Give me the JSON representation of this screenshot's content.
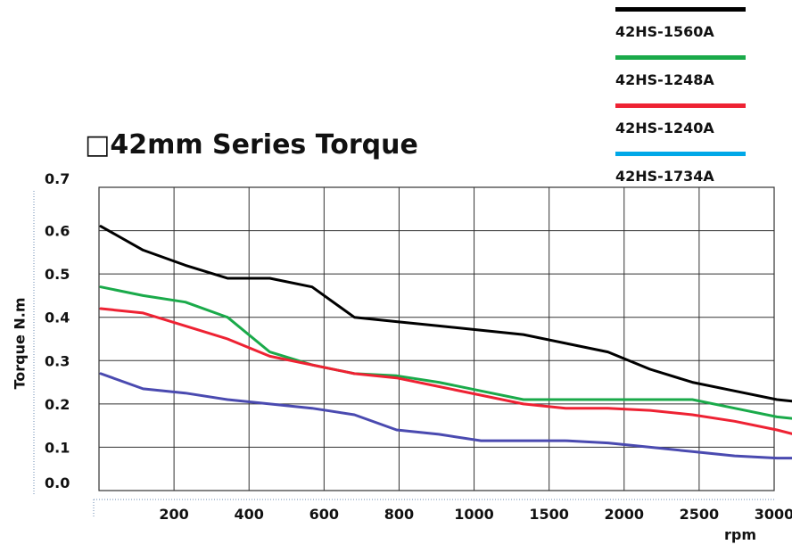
{
  "chart_data": {
    "type": "line",
    "title": "□42mm Series Torque",
    "ylabel": "Torque N.m",
    "xlabel": "rpm",
    "categories": [
      "200",
      "400",
      "600",
      "800",
      "1000",
      "1500",
      "2000",
      "2500",
      "3000"
    ],
    "y_ticks": [
      "0.0",
      "0.1",
      "0.2",
      "0.3",
      "0.4",
      "0.5",
      "0.6",
      "0.7"
    ],
    "ylim": [
      0,
      0.7
    ],
    "grid": true,
    "legend_position": "top-right",
    "series": [
      {
        "name": "42HS-1560A",
        "color": "#000000",
        "x": [
          "",
          "200",
          "",
          "400",
          "",
          "600",
          "",
          "800",
          "",
          "1000",
          "",
          "1500",
          "",
          "2000",
          "",
          "2500",
          "",
          "3000"
        ],
        "values": [
          0.61,
          0.555,
          0.52,
          0.49,
          0.49,
          0.47,
          0.4,
          0.39,
          0.38,
          0.37,
          0.36,
          0.34,
          0.32,
          0.28,
          0.25,
          0.23,
          0.21,
          0.2
        ]
      },
      {
        "name": "42HS-1248A",
        "color": "#1aaa4a",
        "x": [
          "",
          "200",
          "",
          "400",
          "",
          "600",
          "",
          "800",
          "",
          "1000",
          "",
          "1500",
          "",
          "2000",
          "",
          "2500",
          "",
          "3000"
        ],
        "values": [
          0.47,
          0.45,
          0.435,
          0.4,
          0.32,
          0.29,
          0.27,
          0.265,
          0.25,
          0.23,
          0.21,
          0.21,
          0.21,
          0.21,
          0.21,
          0.19,
          0.17,
          0.16
        ]
      },
      {
        "name": "42HS-1240A",
        "color": "#ee2233",
        "x": [
          "",
          "200",
          "",
          "400",
          "",
          "600",
          "",
          "800",
          "",
          "1000",
          "",
          "1500",
          "",
          "2000",
          "",
          "2500",
          "",
          "3000"
        ],
        "values": [
          0.42,
          0.41,
          0.38,
          0.35,
          0.31,
          0.29,
          0.27,
          0.26,
          0.24,
          0.22,
          0.2,
          0.19,
          0.19,
          0.185,
          0.175,
          0.16,
          0.14,
          0.115
        ]
      },
      {
        "name": "42HS-1734A",
        "color": "#00a8e8",
        "line_color": "#4a4ab0",
        "x": [
          "",
          "200",
          "",
          "400",
          "",
          "600",
          "",
          "800",
          "",
          "1000",
          "",
          "1500",
          "",
          "2000",
          "",
          "2500",
          "",
          "3000"
        ],
        "values": [
          0.27,
          0.235,
          0.225,
          0.21,
          0.2,
          0.19,
          0.175,
          0.14,
          0.13,
          0.115,
          0.115,
          0.115,
          0.11,
          0.1,
          0.09,
          0.08,
          0.075,
          0.075
        ]
      }
    ]
  }
}
